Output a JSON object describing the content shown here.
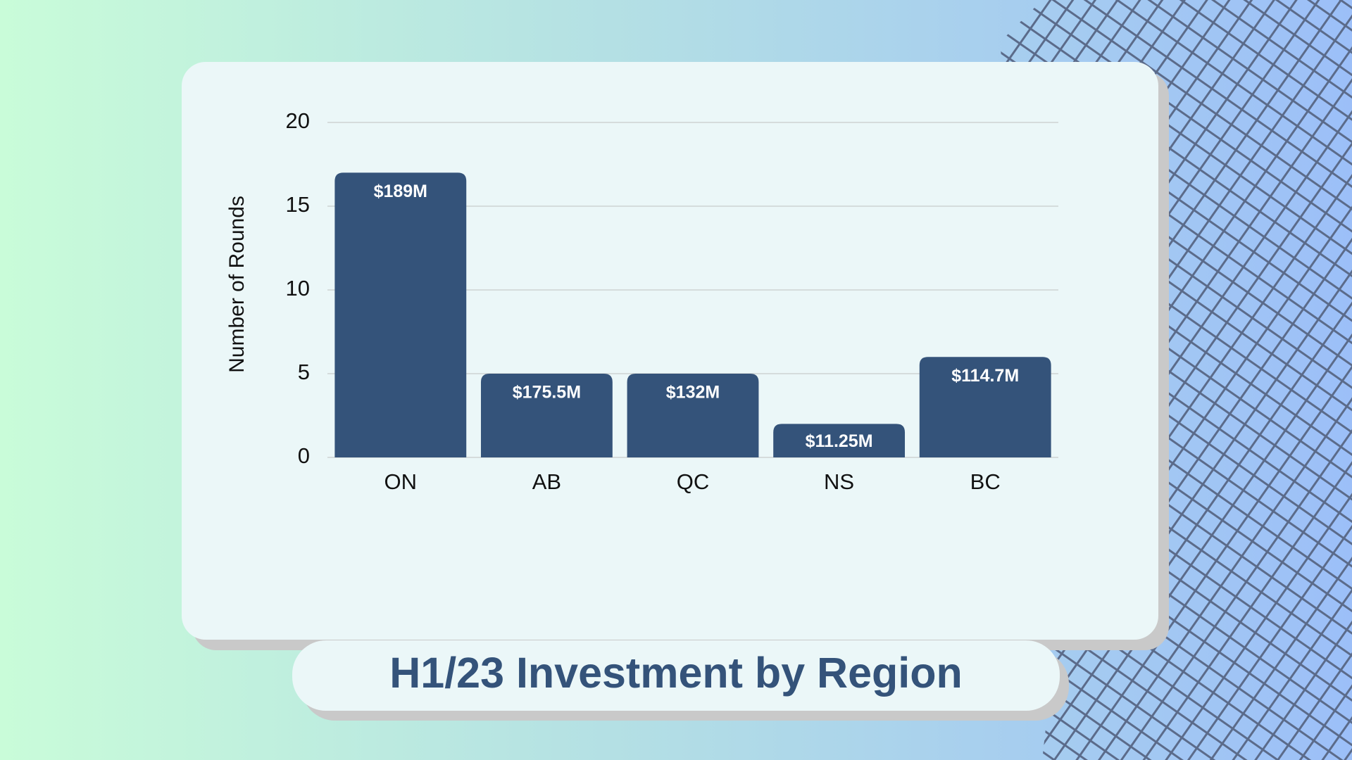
{
  "chart_data": {
    "type": "bar",
    "title": "H1/23 Investment by Region",
    "y_label": "Number of Rounds",
    "categories": [
      "ON",
      "AB",
      "QC",
      "NS",
      "BC"
    ],
    "values": [
      17,
      5,
      5,
      2,
      6
    ],
    "bar_labels": [
      "$189M",
      "$175.5M",
      "$132M",
      "$11.25M",
      "$114.7M"
    ],
    "color": "#34537a",
    "ylim": [
      0,
      20
    ],
    "yticks": [
      0,
      5,
      10,
      15,
      20
    ],
    "grid": true
  }
}
